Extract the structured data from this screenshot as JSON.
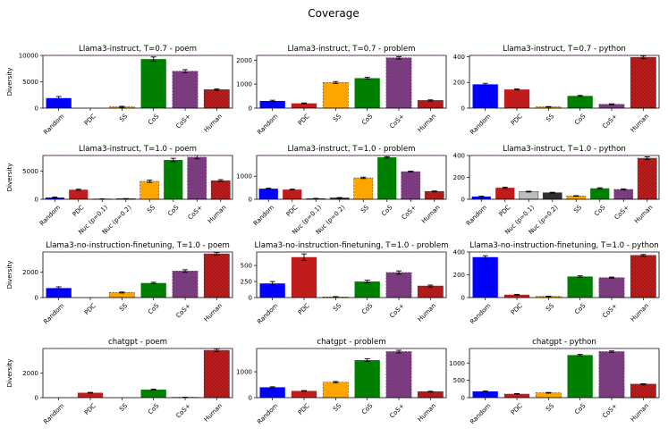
{
  "figure": {
    "title": "Coverage"
  },
  "colors": {
    "Random": "#0000ff",
    "PDC": "#c01c1c",
    "SS": "#ffa500",
    "CoS": "#008000",
    "CoS+": "#7b3c80",
    "Human": "#c01c1c",
    "Nuc (p=0.1)": "#bdbdbd",
    "Nuc (p=0.2)": "#2f2f2f"
  },
  "chart_data": [
    {
      "type": "bar",
      "title": "Llama3-instruct, T=0.7 - poem",
      "ylabel": "Diversity",
      "categories": [
        "Random",
        "PDC",
        "SS",
        "CoS",
        "CoS+",
        "Human"
      ],
      "values": [
        1900,
        0,
        250,
        9300,
        7000,
        3500
      ],
      "errors": [
        300,
        0,
        100,
        400,
        300,
        150
      ],
      "ylim": [
        0,
        10000
      ],
      "yticks": [
        0,
        5000,
        10000
      ],
      "ytick_labels": [
        "0",
        "5000",
        "10000"
      ]
    },
    {
      "type": "bar",
      "title": "Llama3-instruct, T=0.7 - problem",
      "ylabel": "",
      "categories": [
        "Random",
        "PDC",
        "SS",
        "CoS",
        "CoS+",
        "Human"
      ],
      "values": [
        300,
        200,
        1070,
        1250,
        2100,
        320
      ],
      "errors": [
        30,
        15,
        40,
        40,
        50,
        25
      ],
      "ylim": [
        0,
        2200
      ],
      "yticks": [
        0,
        1000,
        2000
      ],
      "ytick_labels": [
        "0",
        "1000",
        "2000"
      ]
    },
    {
      "type": "bar",
      "title": "Llama3-instruct, T=0.7 - python",
      "ylabel": "",
      "categories": [
        "Random",
        "PDC",
        "SS",
        "CoS",
        "CoS+",
        "Human"
      ],
      "values": [
        185,
        145,
        10,
        95,
        30,
        395
      ],
      "errors": [
        8,
        4,
        2,
        4,
        3,
        10
      ],
      "ylim": [
        0,
        410
      ],
      "yticks": [
        0,
        200,
        400
      ],
      "ytick_labels": [
        "0",
        "200",
        "400"
      ]
    },
    {
      "type": "bar",
      "title": "Llama3-instruct, T=1.0 - poem",
      "ylabel": "Diversity",
      "categories": [
        "Random",
        "PDC",
        "Nuc (p=0.1)",
        "Nuc (p=0.2)",
        "SS",
        "CoS",
        "CoS+",
        "Human"
      ],
      "values": [
        300,
        1700,
        50,
        100,
        3200,
        7000,
        7500,
        3300
      ],
      "errors": [
        100,
        100,
        20,
        30,
        200,
        300,
        300,
        200
      ],
      "ylim": [
        0,
        7800
      ],
      "yticks": [
        0,
        5000
      ],
      "ytick_labels": [
        "0",
        "5000"
      ]
    },
    {
      "type": "bar",
      "title": "Llama3-instruct, T=1.0 - problem",
      "ylabel": "",
      "categories": [
        "Random",
        "PDC",
        "Nuc (p=0.1)",
        "Nuc (p=0.2)",
        "SS",
        "CoS",
        "CoS+",
        "Human"
      ],
      "values": [
        460,
        420,
        30,
        60,
        930,
        1820,
        1200,
        340
      ],
      "errors": [
        20,
        20,
        10,
        15,
        30,
        30,
        20,
        20
      ],
      "ylim": [
        0,
        1900
      ],
      "yticks": [
        0,
        1000
      ],
      "ytick_labels": [
        "0",
        "1000"
      ]
    },
    {
      "type": "bar",
      "title": "Llama3-instruct, T=1.0 - python",
      "ylabel": "",
      "categories": [
        "Random",
        "PDC",
        "Nuc (p=0.1)",
        "Nuc (p=0.2)",
        "SS",
        "CoS",
        "CoS+",
        "Human"
      ],
      "values": [
        25,
        105,
        70,
        60,
        30,
        100,
        90,
        375
      ],
      "errors": [
        3,
        6,
        4,
        4,
        3,
        5,
        5,
        12
      ],
      "ylim": [
        0,
        400
      ],
      "yticks": [
        0,
        200,
        400
      ],
      "ytick_labels": [
        "0",
        "200",
        "400"
      ]
    },
    {
      "type": "bar",
      "title": "Llama3-no-instruction-finetuning, T=1.0 - poem",
      "ylabel": "Diversity",
      "categories": [
        "Random",
        "PDC",
        "SS",
        "CoS",
        "CoS+",
        "Human"
      ],
      "values": [
        750,
        0,
        400,
        1150,
        2100,
        3450
      ],
      "errors": [
        100,
        0,
        40,
        60,
        100,
        100
      ],
      "ylim": [
        0,
        3600
      ],
      "yticks": [
        0,
        2000
      ],
      "ytick_labels": [
        "0",
        "2000"
      ]
    },
    {
      "type": "bar",
      "title": "Llama3-no-instruction-finetuning, T=1.0 - problem",
      "ylabel": "",
      "categories": [
        "Random",
        "PDC",
        "SS",
        "CoS",
        "CoS+",
        "Human"
      ],
      "values": [
        220,
        630,
        10,
        250,
        390,
        180
      ],
      "errors": [
        30,
        50,
        5,
        20,
        25,
        15
      ],
      "ylim": [
        0,
        710
      ],
      "yticks": [
        0,
        250,
        500
      ],
      "ytick_labels": [
        "0",
        "250",
        "500"
      ]
    },
    {
      "type": "bar",
      "title": "Llama3-no-instruction-finetuning, T=1.0 - python",
      "ylabel": "",
      "categories": [
        "Random",
        "PDC",
        "SS",
        "CoS",
        "CoS+",
        "Human"
      ],
      "values": [
        355,
        25,
        10,
        185,
        175,
        370
      ],
      "errors": [
        12,
        3,
        2,
        6,
        5,
        8
      ],
      "ylim": [
        0,
        400
      ],
      "yticks": [
        0,
        200,
        400
      ],
      "ytick_labels": [
        "0",
        "200",
        "400"
      ]
    },
    {
      "type": "bar",
      "title": "chatgpt - poem",
      "ylabel": "Diversity",
      "categories": [
        "Random",
        "PDC",
        "SS",
        "CoS",
        "CoS+",
        "Human"
      ],
      "values": [
        0,
        400,
        0,
        650,
        30,
        3850
      ],
      "errors": [
        0,
        30,
        0,
        40,
        10,
        100
      ],
      "ylim": [
        0,
        4000
      ],
      "yticks": [
        0,
        2000
      ],
      "ytick_labels": [
        "0",
        "2000"
      ]
    },
    {
      "type": "bar",
      "title": "chatgpt - problem",
      "ylabel": "",
      "categories": [
        "Random",
        "PDC",
        "SS",
        "CoS",
        "CoS+",
        "Human"
      ],
      "values": [
        400,
        260,
        600,
        1450,
        1780,
        230
      ],
      "errors": [
        20,
        15,
        25,
        50,
        50,
        15
      ],
      "ylim": [
        0,
        1900
      ],
      "yticks": [
        0,
        1000
      ],
      "ytick_labels": [
        "0",
        "1000"
      ]
    },
    {
      "type": "bar",
      "title": "chatgpt - python",
      "ylabel": "",
      "categories": [
        "Random",
        "PDC",
        "SS",
        "CoS",
        "CoS+",
        "Human"
      ],
      "values": [
        180,
        110,
        140,
        1230,
        1330,
        390
      ],
      "errors": [
        10,
        8,
        10,
        20,
        20,
        12
      ],
      "ylim": [
        0,
        1420
      ],
      "yticks": [
        0,
        500,
        1000
      ],
      "ytick_labels": [
        "0",
        "500",
        "1000"
      ]
    }
  ]
}
